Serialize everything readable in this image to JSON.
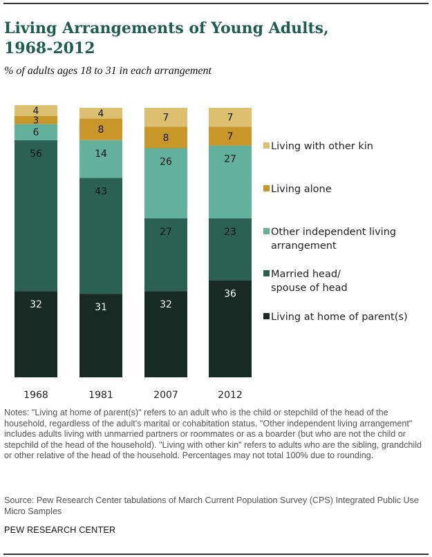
{
  "header": {
    "title": "Living Arrangements of Young Adults, 1968-2012",
    "subtitle": "% of adults ages 18 to 31 in each arrangement"
  },
  "chart_data": {
    "type": "bar",
    "stacked": true,
    "orientation": "vertical",
    "title": "Living Arrangements of Young Adults, 1968-2012",
    "subtitle": "% of adults ages 18 to 31 in each arrangement",
    "xlabel": "",
    "ylabel": "",
    "categories": [
      "1968",
      "1981",
      "2007",
      "2012"
    ],
    "series": [
      {
        "name": "Living at home of parent(s)",
        "color": "#172A24",
        "label_color": "#ffffff",
        "values": [
          32,
          31,
          32,
          36
        ]
      },
      {
        "name": "Married head/ spouse of head",
        "color": "#2B6152",
        "label_color": "#111111",
        "values": [
          56,
          43,
          27,
          23
        ]
      },
      {
        "name": "Other independent living arrangement",
        "color": "#63B09C",
        "label_color": "#111111",
        "values": [
          6,
          14,
          26,
          27
        ]
      },
      {
        "name": "Living alone",
        "color": "#C9962A",
        "label_color": "#111111",
        "values": [
          3,
          8,
          8,
          7
        ]
      },
      {
        "name": "Living with other kin",
        "color": "#DCC070",
        "label_color": "#111111",
        "values": [
          4,
          4,
          7,
          7
        ]
      }
    ],
    "legend": {
      "placement": "right",
      "order": [
        "Living with other kin",
        "Living alone",
        "Other independent living arrangement",
        "Married head/ spouse of head",
        "Living at home of parent(s)"
      ],
      "lines": [
        [
          "Living with other kin"
        ],
        [
          "Living alone"
        ],
        [
          "Other independent living",
          "arrangement"
        ],
        [
          "Married head/",
          "spouse of head"
        ],
        [
          "Living at home of parent(s)"
        ]
      ]
    },
    "ylim": [
      0,
      100
    ],
    "grid": false,
    "axis_visible": false
  },
  "footer": {
    "notes": "Notes: \"Living at home of parent(s)\" refers to an adult who is the child or stepchild of the head of the household, regardless of the adult's marital or cohabitation status. \"Other independent living arrangement\" includes adults living with unmarried partners or roommates or as a boarder (but who are not the child or stepchild of the head of the household). \"Living with other kin\" refers to adults who are the sibling, grandchild or other relative of the head of the household. Percentages may not total 100% due to rounding.",
    "source": "Source: Pew Research Center tabulations of March Current Population Survey (CPS) Integrated Public Use Micro Samples",
    "org": "PEW RESEARCH CENTER"
  }
}
